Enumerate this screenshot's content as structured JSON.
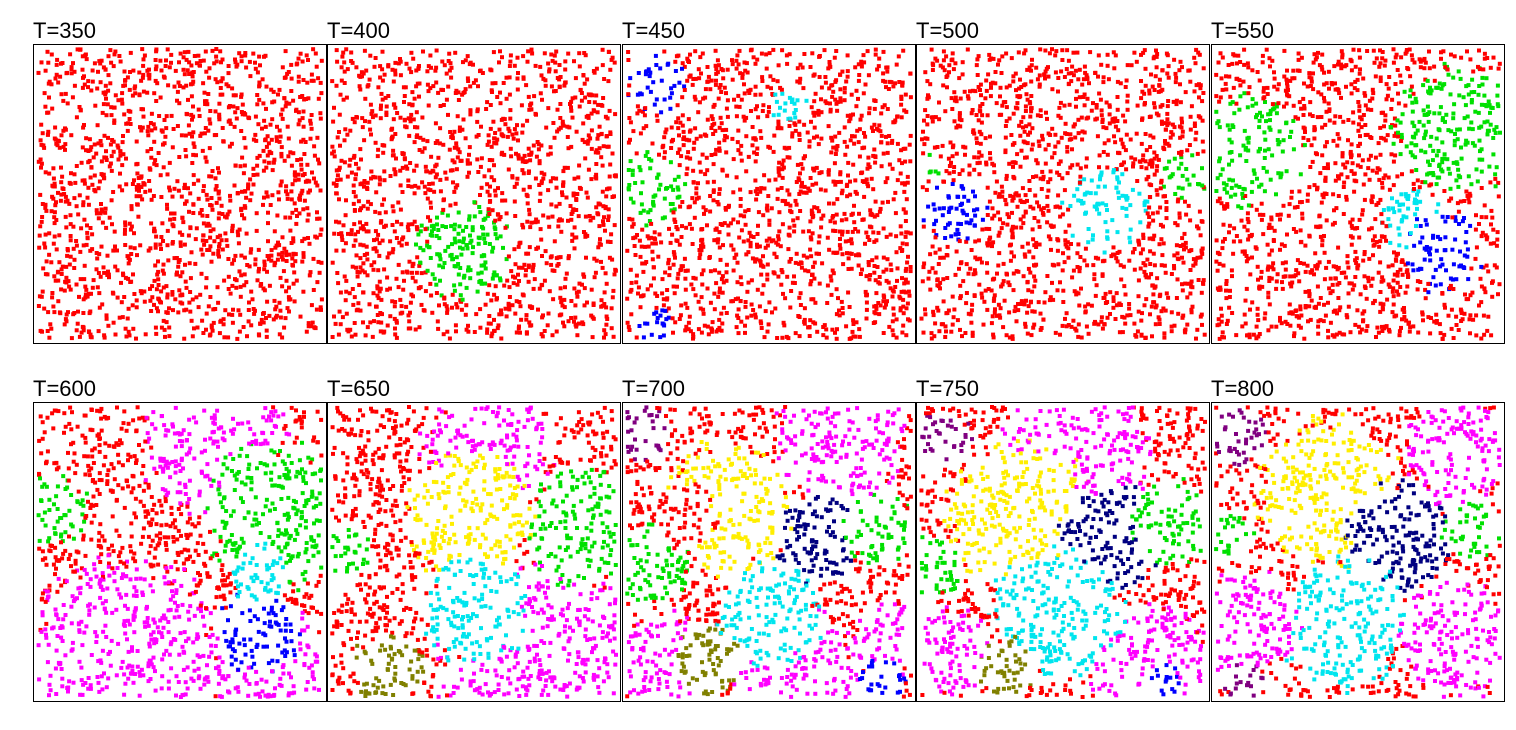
{
  "chart_data": {
    "type": "scatter",
    "layout": "2x5 small multiples",
    "point_size_note": "small square markers, no axes ticks or labels",
    "xlim": [
      0,
      1
    ],
    "ylim": [
      0,
      1
    ],
    "grid": false,
    "palette": {
      "red": "#ff0000",
      "green": "#00e000",
      "blue": "#0000ff",
      "cyan": "#00e5ee",
      "magenta": "#ff00ff",
      "yellow": "#ffee00",
      "navy": "#000080",
      "olive": "#808000",
      "purple": "#800080"
    },
    "panels": [
      {
        "title": "T=350",
        "regions": []
      },
      {
        "title": "T=400",
        "regions": [
          {
            "color": "green",
            "cx": 0.47,
            "cy": 0.3,
            "r": 0.16
          }
        ]
      },
      {
        "title": "T=450",
        "regions": [
          {
            "color": "blue",
            "cx": 0.1,
            "cy": 0.88,
            "r": 0.1
          },
          {
            "color": "blue",
            "cx": 0.1,
            "cy": 0.05,
            "r": 0.06
          },
          {
            "color": "green",
            "cx": 0.08,
            "cy": 0.52,
            "r": 0.12
          },
          {
            "color": "cyan",
            "cx": 0.57,
            "cy": 0.81,
            "r": 0.06
          }
        ]
      },
      {
        "title": "T=500",
        "regions": [
          {
            "color": "blue",
            "cx": 0.12,
            "cy": 0.44,
            "r": 0.11
          },
          {
            "color": "cyan",
            "cx": 0.65,
            "cy": 0.45,
            "r": 0.14
          },
          {
            "color": "green",
            "cx": 0.92,
            "cy": 0.56,
            "r": 0.08
          },
          {
            "color": "green",
            "cx": 0.03,
            "cy": 0.6,
            "r": 0.05
          }
        ]
      },
      {
        "title": "T=550",
        "regions": [
          {
            "color": "green",
            "cx": 0.85,
            "cy": 0.72,
            "r": 0.22
          },
          {
            "color": "green",
            "cx": 0.12,
            "cy": 0.65,
            "r": 0.18
          },
          {
            "color": "cyan",
            "cx": 0.68,
            "cy": 0.42,
            "r": 0.1
          },
          {
            "color": "blue",
            "cx": 0.8,
            "cy": 0.3,
            "r": 0.13
          }
        ]
      },
      {
        "title": "T=600",
        "regions": [
          {
            "color": "magenta",
            "cx": 0.3,
            "cy": 0.12,
            "r": 0.35
          },
          {
            "color": "magenta",
            "cx": 0.85,
            "cy": 0.05,
            "r": 0.25
          },
          {
            "color": "magenta",
            "cx": 0.63,
            "cy": 0.88,
            "r": 0.25
          },
          {
            "color": "green",
            "cx": 0.85,
            "cy": 0.62,
            "r": 0.25
          },
          {
            "color": "green",
            "cx": 0.05,
            "cy": 0.65,
            "r": 0.12
          },
          {
            "color": "blue",
            "cx": 0.78,
            "cy": 0.22,
            "r": 0.14
          },
          {
            "color": "cyan",
            "cx": 0.78,
            "cy": 0.42,
            "r": 0.1
          }
        ]
      },
      {
        "title": "T=650",
        "regions": [
          {
            "color": "magenta",
            "cx": 0.75,
            "cy": 0.12,
            "r": 0.35
          },
          {
            "color": "magenta",
            "cx": 0.55,
            "cy": 0.85,
            "r": 0.22
          },
          {
            "color": "green",
            "cx": 0.88,
            "cy": 0.58,
            "r": 0.2
          },
          {
            "color": "green",
            "cx": 0.03,
            "cy": 0.5,
            "r": 0.1
          },
          {
            "color": "yellow",
            "cx": 0.48,
            "cy": 0.62,
            "r": 0.22
          },
          {
            "color": "cyan",
            "cx": 0.5,
            "cy": 0.3,
            "r": 0.18
          },
          {
            "color": "olive",
            "cx": 0.2,
            "cy": 0.1,
            "r": 0.12
          }
        ]
      },
      {
        "title": "T=700",
        "regions": [
          {
            "color": "magenta",
            "cx": 0.6,
            "cy": 0.08,
            "r": 0.22
          },
          {
            "color": "magenta",
            "cx": 0.15,
            "cy": 0.1,
            "r": 0.18
          },
          {
            "color": "magenta",
            "cx": 0.75,
            "cy": 0.88,
            "r": 0.22
          },
          {
            "color": "magenta",
            "cx": 0.92,
            "cy": 0.2,
            "r": 0.12
          },
          {
            "color": "navy",
            "cx": 0.68,
            "cy": 0.55,
            "r": 0.16
          },
          {
            "color": "yellow",
            "cx": 0.35,
            "cy": 0.65,
            "r": 0.22
          },
          {
            "color": "cyan",
            "cx": 0.5,
            "cy": 0.28,
            "r": 0.18
          },
          {
            "color": "green",
            "cx": 0.08,
            "cy": 0.45,
            "r": 0.14
          },
          {
            "color": "green",
            "cx": 0.88,
            "cy": 0.58,
            "r": 0.12
          },
          {
            "color": "olive",
            "cx": 0.28,
            "cy": 0.12,
            "r": 0.12
          },
          {
            "color": "purple",
            "cx": 0.05,
            "cy": 0.9,
            "r": 0.1
          },
          {
            "color": "blue",
            "cx": 0.9,
            "cy": 0.05,
            "r": 0.08
          },
          {
            "color": "red",
            "cx": 0.2,
            "cy": 0.62,
            "r": 0.12
          }
        ]
      },
      {
        "title": "T=750",
        "regions": [
          {
            "color": "magenta",
            "cx": 0.55,
            "cy": 0.85,
            "r": 0.25
          },
          {
            "color": "magenta",
            "cx": 0.8,
            "cy": 0.1,
            "r": 0.22
          },
          {
            "color": "magenta",
            "cx": 0.1,
            "cy": 0.15,
            "r": 0.15
          },
          {
            "color": "yellow",
            "cx": 0.35,
            "cy": 0.62,
            "r": 0.25
          },
          {
            "color": "navy",
            "cx": 0.68,
            "cy": 0.55,
            "r": 0.18
          },
          {
            "color": "cyan",
            "cx": 0.48,
            "cy": 0.28,
            "r": 0.22
          },
          {
            "color": "green",
            "cx": 0.88,
            "cy": 0.6,
            "r": 0.14
          },
          {
            "color": "green",
            "cx": 0.05,
            "cy": 0.45,
            "r": 0.1
          },
          {
            "color": "olive",
            "cx": 0.3,
            "cy": 0.1,
            "r": 0.1
          },
          {
            "color": "purple",
            "cx": 0.08,
            "cy": 0.88,
            "r": 0.1
          },
          {
            "color": "blue",
            "cx": 0.85,
            "cy": 0.05,
            "r": 0.06
          }
        ]
      },
      {
        "title": "T=800",
        "regions": [
          {
            "color": "yellow",
            "cx": 0.4,
            "cy": 0.7,
            "r": 0.25
          },
          {
            "color": "navy",
            "cx": 0.65,
            "cy": 0.55,
            "r": 0.18
          },
          {
            "color": "cyan",
            "cx": 0.45,
            "cy": 0.25,
            "r": 0.22
          },
          {
            "color": "magenta",
            "cx": 0.85,
            "cy": 0.2,
            "r": 0.2
          },
          {
            "color": "magenta",
            "cx": 0.1,
            "cy": 0.25,
            "r": 0.18
          },
          {
            "color": "magenta",
            "cx": 0.85,
            "cy": 0.85,
            "r": 0.18
          },
          {
            "color": "green",
            "cx": 0.9,
            "cy": 0.58,
            "r": 0.1
          },
          {
            "color": "green",
            "cx": 0.05,
            "cy": 0.55,
            "r": 0.08
          },
          {
            "color": "purple",
            "cx": 0.08,
            "cy": 0.9,
            "r": 0.1
          },
          {
            "color": "purple",
            "cx": 0.1,
            "cy": 0.05,
            "r": 0.07
          }
        ]
      }
    ],
    "base_color": "red",
    "points_per_panel": 1400,
    "random_seed": 20240517
  }
}
